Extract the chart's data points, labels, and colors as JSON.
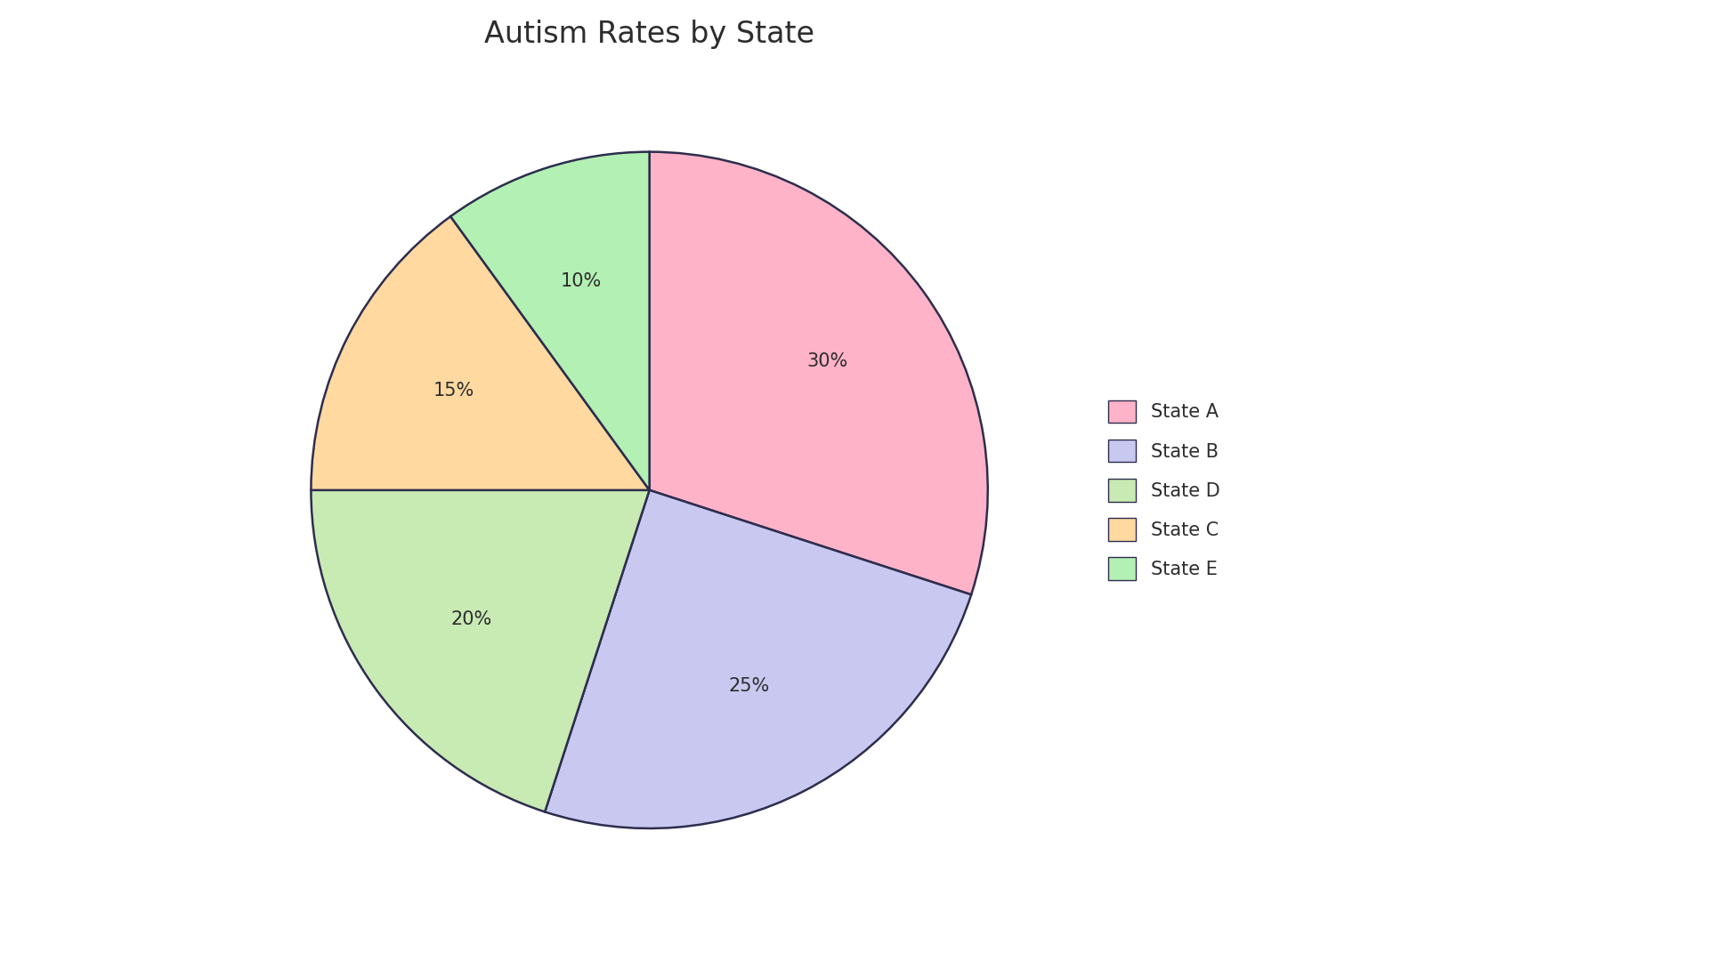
{
  "title": "Autism Rates by State",
  "labels": [
    "State A",
    "State B",
    "State D",
    "State C",
    "State E"
  ],
  "sizes": [
    30,
    25,
    20,
    15,
    10
  ],
  "colors": [
    "#FFB3C8",
    "#C8C8F0",
    "#C8EAB3",
    "#FFD9A0",
    "#B3F0B3"
  ],
  "edge_color": "#2d2d4e",
  "edge_width": 1.8,
  "autopct_color": "#2d2d2d",
  "title_fontsize": 24,
  "legend_fontsize": 15,
  "autopct_fontsize": 15,
  "startangle": 90,
  "background_color": "#ffffff"
}
